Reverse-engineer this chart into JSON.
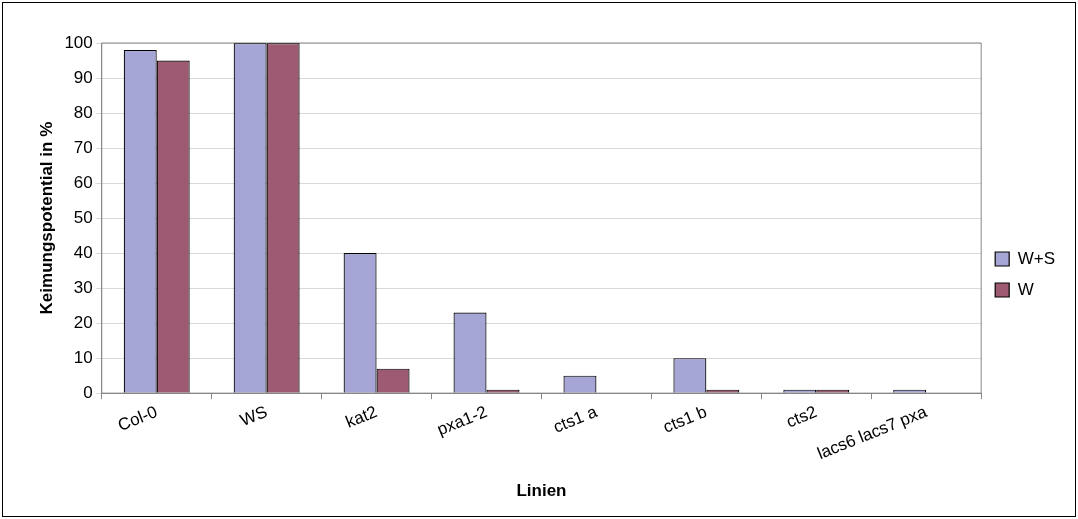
{
  "chart_data": {
    "type": "bar",
    "xlabel": "Linien",
    "ylabel": "Keimungspotential in %",
    "categories": [
      "Col-0",
      "WS",
      "kat2",
      "pxa1-2",
      "cts1 a",
      "cts1 b",
      "cts2",
      "lacs6 lacs7 pxa"
    ],
    "series": [
      {
        "name": "W+S",
        "color": "#a5a5d6",
        "values": [
          98,
          100,
          40,
          23,
          5,
          10,
          1,
          1
        ]
      },
      {
        "name": "W",
        "color": "#9e5a73",
        "values": [
          95,
          100,
          7,
          1,
          null,
          1,
          1,
          null
        ]
      }
    ],
    "ylim": [
      0,
      100
    ],
    "yticks": [
      0,
      10,
      20,
      30,
      40,
      50,
      60,
      70,
      80,
      90,
      100
    ],
    "grid": "y",
    "legend": "right"
  }
}
